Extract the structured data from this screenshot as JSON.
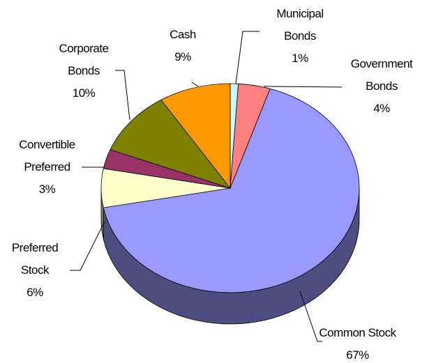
{
  "chart_data": {
    "type": "pie",
    "categories": [
      "Municipal Bonds",
      "Government Bonds",
      "Common Stock",
      "Preferred Stock",
      "Convertible Preferred",
      "Corporate Bonds",
      "Cash"
    ],
    "values": [
      1,
      4,
      67,
      6,
      3,
      10,
      9
    ],
    "value_labels": [
      "1%",
      "4%",
      "67%",
      "6%",
      "3%",
      "10%",
      "9%"
    ],
    "colors": [
      "#ccffff",
      "#ff8080",
      "#9999ff",
      "#ffffcc",
      "#993366",
      "#808000",
      "#ff9900"
    ]
  }
}
